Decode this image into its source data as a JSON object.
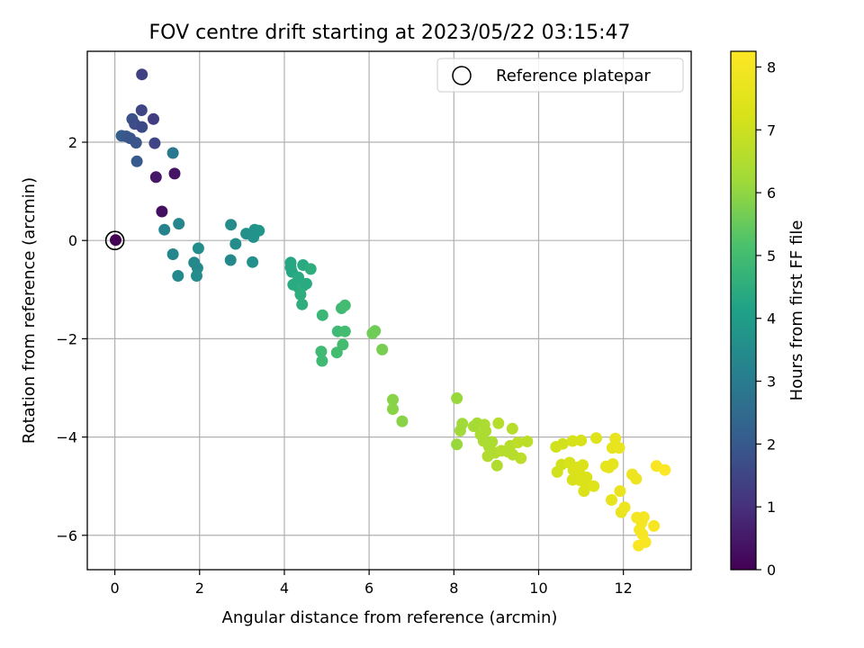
{
  "chart_data": {
    "type": "scatter",
    "title": "FOV centre drift starting at 2023/05/22 03:15:47",
    "xlabel": "Angular distance from reference (arcmin)",
    "ylabel": "Rotation from reference (arcmin)",
    "xlim": [
      -0.65,
      13.6
    ],
    "ylim": [
      -6.7,
      3.85
    ],
    "xticks": [
      0,
      2,
      4,
      6,
      8,
      10,
      12
    ],
    "yticks": [
      -6,
      -4,
      -2,
      0,
      2
    ],
    "grid": true,
    "legend": {
      "position": "top-right",
      "entries": [
        "Reference platepar"
      ]
    },
    "reference": {
      "x": 0,
      "y": 0
    },
    "colorbar": {
      "label": "Hours from first FF file",
      "range": [
        0,
        8.25
      ],
      "ticks": [
        0,
        1,
        2,
        3,
        4,
        5,
        6,
        7,
        8
      ],
      "colormap": "viridis"
    },
    "points": [
      [
        0.64,
        3.38,
        1.4
      ],
      [
        0.63,
        2.65,
        1.5
      ],
      [
        0.91,
        2.47,
        1.3
      ],
      [
        0.41,
        2.47,
        1.8
      ],
      [
        0.47,
        2.37,
        1.7
      ],
      [
        0.64,
        2.31,
        1.6
      ],
      [
        0.16,
        2.13,
        2.1
      ],
      [
        0.27,
        2.12,
        2.0
      ],
      [
        0.36,
        2.08,
        1.9
      ],
      [
        0.5,
        1.99,
        1.9
      ],
      [
        0.94,
        1.98,
        1.5
      ],
      [
        1.37,
        1.78,
        2.9
      ],
      [
        0.52,
        1.61,
        2.0
      ],
      [
        1.41,
        1.36,
        0.4
      ],
      [
        0.97,
        1.29,
        0.5
      ],
      [
        1.11,
        0.59,
        0.3
      ],
      [
        0.02,
        0.01,
        0.0
      ],
      [
        1.17,
        0.22,
        3.2
      ],
      [
        1.51,
        0.34,
        3.3
      ],
      [
        1.37,
        -0.28,
        3.3
      ],
      [
        1.49,
        -0.72,
        3.4
      ],
      [
        1.87,
        -0.45,
        3.4
      ],
      [
        1.95,
        -0.56,
        3.4
      ],
      [
        1.93,
        -0.72,
        3.5
      ],
      [
        1.97,
        -0.16,
        3.5
      ],
      [
        2.74,
        0.32,
        3.5
      ],
      [
        2.85,
        -0.07,
        3.5
      ],
      [
        2.73,
        -0.4,
        3.4
      ],
      [
        3.1,
        0.14,
        3.6
      ],
      [
        3.27,
        0.07,
        3.6
      ],
      [
        3.3,
        0.22,
        3.7
      ],
      [
        3.4,
        0.2,
        3.8
      ],
      [
        3.28,
        0.15,
        3.7
      ],
      [
        3.25,
        -0.44,
        3.6
      ],
      [
        4.15,
        -0.45,
        4.3
      ],
      [
        4.18,
        -0.64,
        4.3
      ],
      [
        4.15,
        -0.55,
        4.3
      ],
      [
        4.44,
        -0.5,
        4.4
      ],
      [
        4.62,
        -0.58,
        4.5
      ],
      [
        4.21,
        -0.9,
        4.4
      ],
      [
        4.33,
        -0.95,
        4.4
      ],
      [
        4.45,
        -0.92,
        4.5
      ],
      [
        4.52,
        -0.88,
        4.4
      ],
      [
        4.38,
        -1.1,
        4.5
      ],
      [
        4.42,
        -1.3,
        4.5
      ],
      [
        4.33,
        -0.75,
        4.4
      ],
      [
        4.9,
        -1.52,
        4.8
      ],
      [
        4.87,
        -2.26,
        4.9
      ],
      [
        4.89,
        -2.45,
        4.9
      ],
      [
        5.26,
        -1.85,
        4.9
      ],
      [
        5.35,
        -1.38,
        4.9
      ],
      [
        5.43,
        -1.32,
        5.0
      ],
      [
        5.43,
        -1.85,
        5.0
      ],
      [
        5.38,
        -2.12,
        5.0
      ],
      [
        5.24,
        -2.28,
        5.0
      ],
      [
        6.08,
        -1.89,
        5.6
      ],
      [
        6.14,
        -1.84,
        5.6
      ],
      [
        6.31,
        -2.22,
        5.7
      ],
      [
        6.56,
        -3.24,
        5.9
      ],
      [
        6.56,
        -3.43,
        5.9
      ],
      [
        6.78,
        -3.68,
        5.9
      ],
      [
        8.07,
        -3.21,
        6.1
      ],
      [
        8.07,
        -4.15,
        6.1
      ],
      [
        8.15,
        -3.87,
        6.2
      ],
      [
        8.2,
        -3.73,
        6.2
      ],
      [
        8.47,
        -3.78,
        6.3
      ],
      [
        8.55,
        -3.72,
        6.3
      ],
      [
        8.72,
        -3.75,
        6.4
      ],
      [
        8.63,
        -3.95,
        6.4
      ],
      [
        8.75,
        -3.88,
        6.4
      ],
      [
        8.7,
        -4.08,
        6.4
      ],
      [
        8.83,
        -4.2,
        6.4
      ],
      [
        8.9,
        -4.1,
        6.4
      ],
      [
        8.8,
        -4.39,
        6.5
      ],
      [
        8.97,
        -4.32,
        6.5
      ],
      [
        9.02,
        -4.58,
        6.5
      ],
      [
        9.05,
        -3.72,
        6.6
      ],
      [
        9.12,
        -4.28,
        6.6
      ],
      [
        9.28,
        -4.3,
        6.6
      ],
      [
        9.38,
        -3.83,
        6.6
      ],
      [
        9.33,
        -4.18,
        6.6
      ],
      [
        9.51,
        -4.11,
        6.7
      ],
      [
        9.58,
        -4.43,
        6.7
      ],
      [
        9.73,
        -4.09,
        6.7
      ],
      [
        9.39,
        -4.36,
        6.6
      ],
      [
        10.41,
        -4.2,
        7.1
      ],
      [
        10.57,
        -4.14,
        7.1
      ],
      [
        10.44,
        -4.71,
        7.1
      ],
      [
        10.54,
        -4.56,
        7.1
      ],
      [
        10.8,
        -4.08,
        7.2
      ],
      [
        11.0,
        -4.07,
        7.2
      ],
      [
        10.73,
        -4.52,
        7.2
      ],
      [
        10.82,
        -4.67,
        7.2
      ],
      [
        10.9,
        -4.62,
        7.3
      ],
      [
        10.96,
        -4.73,
        7.3
      ],
      [
        11.04,
        -4.57,
        7.3
      ],
      [
        10.8,
        -4.87,
        7.2
      ],
      [
        10.98,
        -4.88,
        7.3
      ],
      [
        11.14,
        -4.95,
        7.3
      ],
      [
        11.13,
        -4.82,
        7.3
      ],
      [
        11.07,
        -5.1,
        7.3
      ],
      [
        11.3,
        -5.0,
        7.4
      ],
      [
        11.36,
        -4.02,
        7.4
      ],
      [
        11.59,
        -4.6,
        7.6
      ],
      [
        11.66,
        -4.62,
        7.6
      ],
      [
        11.75,
        -4.55,
        7.6
      ],
      [
        11.81,
        -4.03,
        7.7
      ],
      [
        11.74,
        -4.22,
        7.6
      ],
      [
        11.9,
        -4.22,
        7.7
      ],
      [
        11.72,
        -5.28,
        7.6
      ],
      [
        11.92,
        -5.1,
        7.7
      ],
      [
        11.95,
        -5.53,
        7.7
      ],
      [
        12.03,
        -5.43,
        7.8
      ],
      [
        12.21,
        -4.76,
        7.8
      ],
      [
        12.3,
        -4.85,
        7.8
      ],
      [
        12.32,
        -5.64,
        8.0
      ],
      [
        12.43,
        -5.74,
        8.0
      ],
      [
        12.48,
        -5.63,
        8.0
      ],
      [
        12.38,
        -5.89,
        8.0
      ],
      [
        12.45,
        -5.98,
        8.0
      ],
      [
        12.52,
        -6.14,
        8.1
      ],
      [
        12.36,
        -6.21,
        8.1
      ],
      [
        12.72,
        -5.81,
        8.1
      ],
      [
        12.78,
        -4.59,
        8.1
      ],
      [
        12.98,
        -4.67,
        8.2
      ]
    ]
  }
}
